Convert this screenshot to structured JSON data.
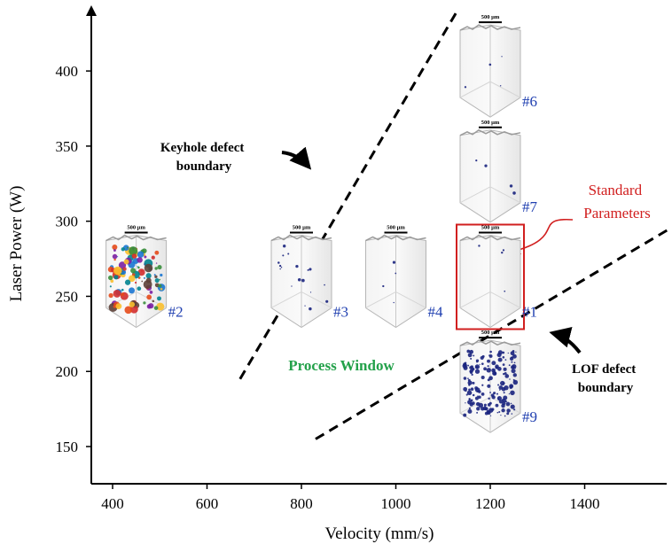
{
  "chart_data": {
    "type": "scatter",
    "xlabel": "Velocity (mm/s)",
    "ylabel": "Laser Power (W)",
    "xlim": [
      360,
      1590
    ],
    "ylim": [
      125,
      445
    ],
    "xticks": [
      400,
      600,
      800,
      1000,
      1200,
      1400
    ],
    "yticks": [
      150,
      200,
      250,
      300,
      350,
      400
    ],
    "points": [
      {
        "label": "#2",
        "x": 450,
        "y": 260,
        "defect": "heavy"
      },
      {
        "label": "#3",
        "x": 800,
        "y": 260,
        "defect": "moderate"
      },
      {
        "label": "#4",
        "x": 1000,
        "y": 260,
        "defect": "low"
      },
      {
        "label": "#1",
        "x": 1200,
        "y": 260,
        "defect": "low",
        "highlighted": true
      },
      {
        "label": "#6",
        "x": 1200,
        "y": 400,
        "defect": "low"
      },
      {
        "label": "#7",
        "x": 1200,
        "y": 330,
        "defect": "low"
      },
      {
        "label": "#9",
        "x": 1200,
        "y": 190,
        "defect": "heavy-lof"
      }
    ],
    "scale_bar_text": "500 µm",
    "boundaries": [
      {
        "label": "Keyhole defect boundary",
        "from": [
          670,
          195
        ],
        "to": [
          1130,
          440
        ]
      },
      {
        "label": "LOF defect boundary",
        "from": [
          830,
          155
        ],
        "to": [
          1580,
          295
        ]
      }
    ],
    "annotations": {
      "keyhole_label": [
        "Keyhole defect",
        "boundary"
      ],
      "lof_label": [
        "LOF defect",
        "boundary"
      ],
      "process_window": "Process Window",
      "standard_parameters": [
        "Standard",
        "Parameters"
      ]
    },
    "colors": {
      "sample_label": "#1f3fb0",
      "process_window": "#23a14a",
      "standard": "#d11f1f"
    }
  }
}
